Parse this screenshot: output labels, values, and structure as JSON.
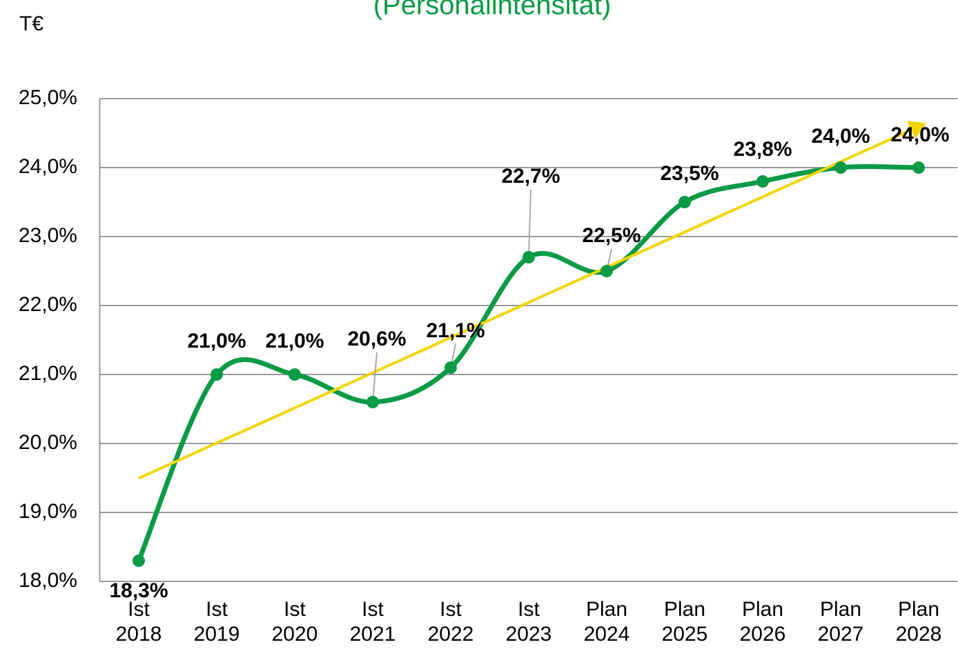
{
  "chart_data": {
    "type": "line",
    "title": "(Personalintensität)",
    "ylabel": "T€",
    "categories": [
      "Ist\n2018",
      "Ist\n2019",
      "Ist\n2020",
      "Ist\n2021",
      "Ist\n2022",
      "Ist\n2023",
      "Plan\n2024",
      "Plan\n2025",
      "Plan\n2026",
      "Plan\n2027",
      "Plan\n2028"
    ],
    "series": [
      {
        "color": "#0b9a46",
        "values": [
          18.3,
          21.0,
          21.0,
          20.6,
          21.1,
          22.7,
          22.5,
          23.5,
          23.8,
          24.0,
          24.0
        ],
        "value_labels": [
          "18,3%",
          "21,0%",
          "21,0%",
          "20,6%",
          "21,1%",
          "22,7%",
          "22,5%",
          "23,5%",
          "23,8%",
          "24,0%",
          "24,0%"
        ]
      }
    ],
    "ylim": [
      18,
      25
    ],
    "yticks": [
      {
        "value": 18,
        "label": "18,0%"
      },
      {
        "value": 19,
        "label": "19,0%"
      },
      {
        "value": 20,
        "label": "20,0%"
      },
      {
        "value": 21,
        "label": "21,0%"
      },
      {
        "value": 22,
        "label": "22,0%"
      },
      {
        "value": 23,
        "label": "23,0%"
      },
      {
        "value": 24,
        "label": "24,0%"
      },
      {
        "value": 25,
        "label": "25,0%"
      }
    ],
    "grid": true,
    "smooth": true,
    "trendline": true,
    "trendline_color": "#f2d500"
  }
}
